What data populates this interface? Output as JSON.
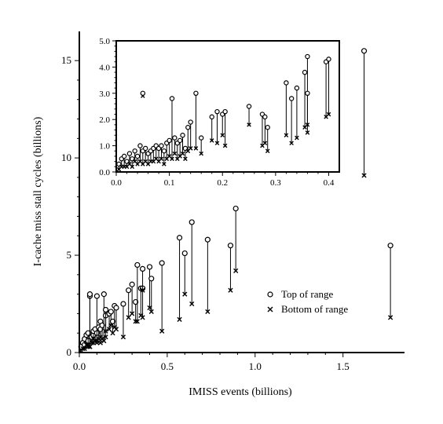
{
  "chart_data": [
    {
      "type": "scatter",
      "xlabel": "IMISS events (billions)",
      "ylabel": "I-cache miss stall cycles (billions)",
      "xlim": [
        0,
        1.85
      ],
      "ylim": [
        0,
        16.5
      ],
      "x_ticks": [
        "0.0",
        "0.5",
        "1.0",
        "1.5"
      ],
      "y_ticks": [
        "0",
        "5",
        "10",
        "15"
      ],
      "legend": {
        "placement": "lower-right",
        "entries": [
          "Top of range",
          "Bottom of range"
        ]
      },
      "series": [
        {
          "name": "Top of range",
          "marker": "circle"
        },
        {
          "name": "Bottom of range",
          "marker": "x"
        }
      ],
      "x": [
        0.01,
        0.02,
        0.03,
        0.03,
        0.04,
        0.05,
        0.05,
        0.06,
        0.06,
        0.07,
        0.08,
        0.08,
        0.09,
        0.1,
        0.1,
        0.11,
        0.12,
        0.12,
        0.13,
        0.14,
        0.15,
        0.15,
        0.17,
        0.18,
        0.19,
        0.2,
        0.21,
        0.25,
        0.28,
        0.3,
        0.32,
        0.33,
        0.35,
        0.36,
        0.36,
        0.4,
        0.41,
        0.47,
        0.57,
        0.6,
        0.64,
        0.73,
        0.86,
        0.89,
        1.62,
        1.77
      ],
      "top": [
        0.3,
        0.5,
        0.7,
        0.4,
        0.9,
        0.6,
        1.0,
        2.9,
        3.0,
        0.8,
        0.9,
        1.1,
        1.2,
        1.0,
        2.9,
        1.3,
        1.6,
        1.2,
        1.4,
        3.0,
        1.9,
        2.2,
        2.0,
        2.1,
        1.6,
        2.4,
        2.3,
        2.5,
        3.2,
        3.5,
        2.6,
        4.5,
        3.3,
        3.3,
        4.3,
        4.4,
        3.8,
        4.6,
        5.9,
        5.1,
        6.7,
        5.8,
        5.5,
        7.4,
        15.5,
        5.5
      ],
      "bottom": [
        0.1,
        0.2,
        0.3,
        0.2,
        0.4,
        0.3,
        0.4,
        0.3,
        0.3,
        0.5,
        0.5,
        0.7,
        0.6,
        0.5,
        0.6,
        0.7,
        0.8,
        0.5,
        0.7,
        0.6,
        1.1,
        0.8,
        1.2,
        1.4,
        1.0,
        1.3,
        1.2,
        0.8,
        1.8,
        2.0,
        1.6,
        1.6,
        1.9,
        1.8,
        3.2,
        2.3,
        2.1,
        1.1,
        1.7,
        3.0,
        2.5,
        2.1,
        3.2,
        4.2,
        9.1,
        1.8
      ]
    },
    {
      "type": "scatter",
      "role": "inset (zoom of lower-left region)",
      "xlim": [
        0,
        0.42
      ],
      "ylim": [
        0,
        5.0
      ],
      "x_ticks": [
        "0.0",
        "0.1",
        "0.2",
        "0.3",
        "0.4"
      ],
      "y_ticks": [
        "0.0",
        "1.0",
        "2.0",
        "3.0",
        "4.0",
        "5.0"
      ],
      "series": [
        {
          "name": "Top of range",
          "marker": "circle"
        },
        {
          "name": "Bottom of range",
          "marker": "x"
        }
      ],
      "x": [
        0.005,
        0.01,
        0.015,
        0.02,
        0.025,
        0.03,
        0.035,
        0.04,
        0.045,
        0.05,
        0.05,
        0.055,
        0.06,
        0.065,
        0.07,
        0.075,
        0.08,
        0.085,
        0.09,
        0.095,
        0.1,
        0.105,
        0.11,
        0.115,
        0.12,
        0.125,
        0.13,
        0.135,
        0.14,
        0.15,
        0.16,
        0.18,
        0.19,
        0.2,
        0.205,
        0.25,
        0.275,
        0.28,
        0.285,
        0.32,
        0.33,
        0.34,
        0.355,
        0.36,
        0.36,
        0.395,
        0.4
      ],
      "top": [
        0.3,
        0.5,
        0.6,
        0.4,
        0.7,
        0.5,
        0.8,
        0.6,
        1.0,
        3.0,
        0.8,
        0.9,
        0.7,
        0.8,
        0.9,
        1.0,
        0.9,
        1.0,
        0.8,
        1.1,
        1.2,
        2.8,
        1.3,
        1.1,
        1.2,
        1.4,
        0.9,
        1.7,
        1.9,
        3.0,
        1.3,
        2.1,
        2.3,
        2.2,
        2.3,
        2.5,
        2.2,
        2.1,
        1.7,
        3.4,
        2.8,
        3.2,
        3.8,
        4.4,
        3.0,
        4.2,
        4.3
      ],
      "bottom": [
        0.1,
        0.2,
        0.2,
        0.2,
        0.3,
        0.2,
        0.4,
        0.3,
        0.4,
        2.9,
        0.3,
        0.4,
        0.3,
        0.4,
        0.4,
        0.5,
        0.4,
        0.5,
        0.3,
        0.5,
        0.6,
        0.5,
        0.7,
        0.5,
        0.6,
        0.7,
        0.5,
        0.8,
        0.9,
        0.9,
        0.7,
        1.2,
        1.1,
        1.4,
        1.0,
        1.8,
        1.0,
        1.1,
        0.8,
        1.4,
        1.1,
        1.3,
        1.7,
        1.5,
        1.8,
        2.1,
        2.2
      ]
    }
  ]
}
